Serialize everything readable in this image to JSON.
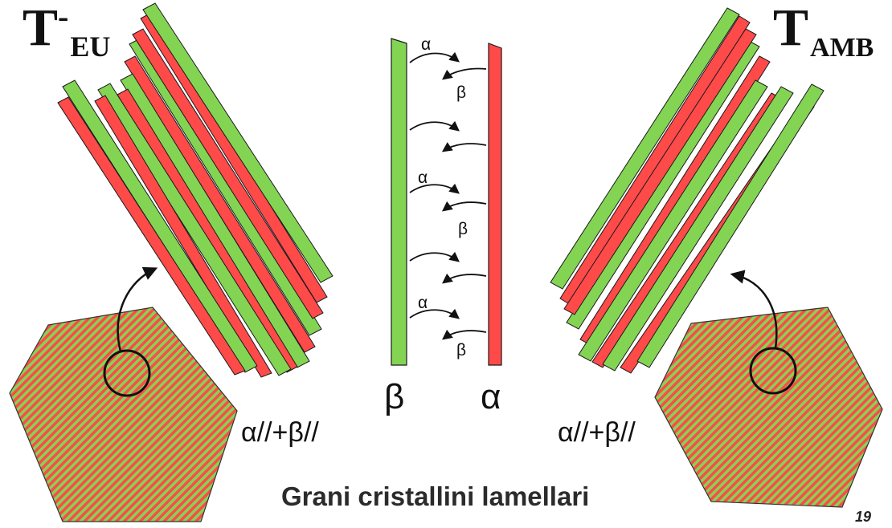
{
  "title_left": {
    "main": "T",
    "sup": "-",
    "sub": "EU"
  },
  "title_right": {
    "main": "T",
    "sub": "AMB"
  },
  "mix_label_left": "α//+β//",
  "mix_label_right": "α//+β//",
  "phase_left": "β",
  "phase_right": "α",
  "arrow_labels": {
    "right": "α",
    "left": "β"
  },
  "caption": "Grani cristallini lamellari",
  "page_number": "19",
  "colors": {
    "green": "#84d454",
    "red": "#ff4a4a",
    "outline": "#1a1a1a"
  }
}
